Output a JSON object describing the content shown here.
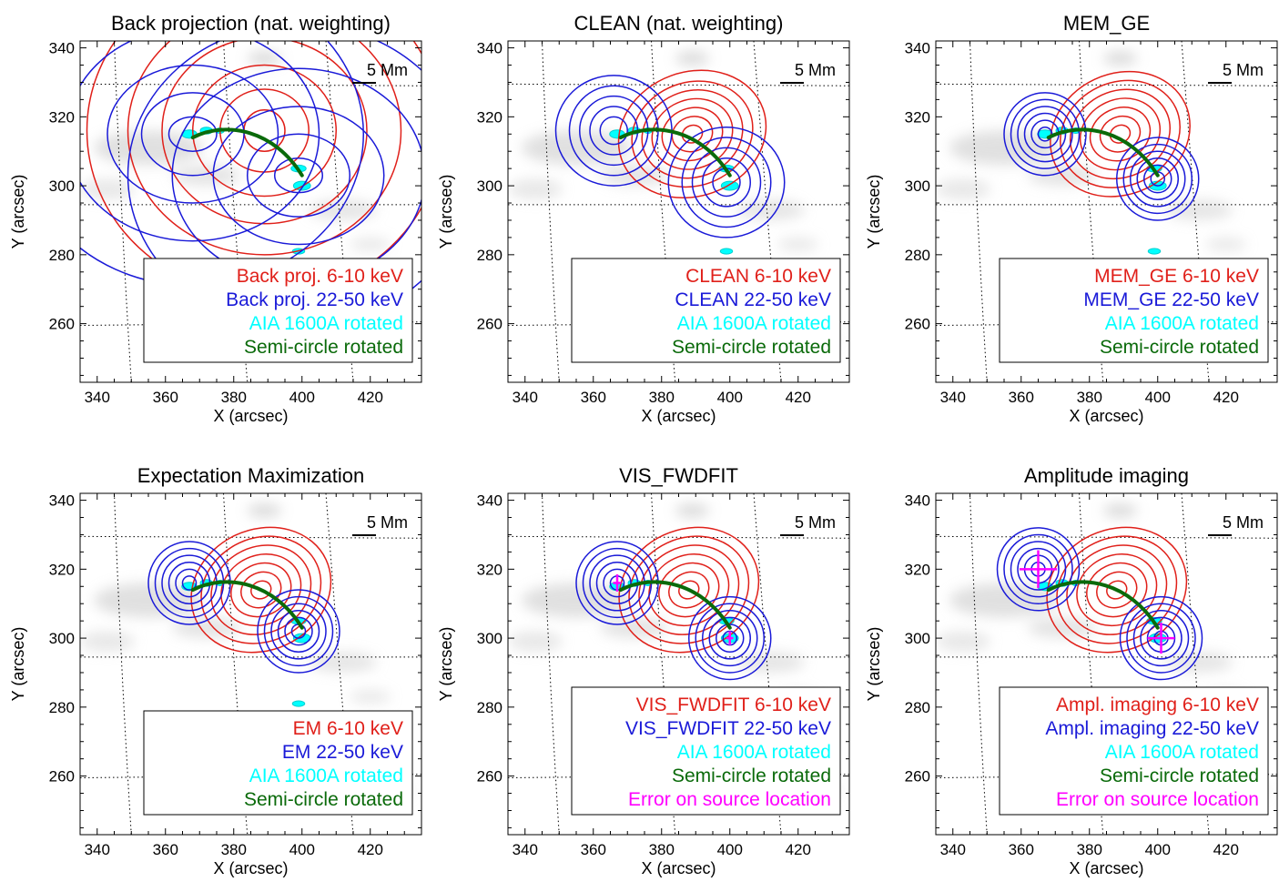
{
  "chart_data": [
    {
      "type": "contour",
      "title": "Back projection (nat. weighting)",
      "xlabel": "X (arcsec)",
      "ylabel": "Y (arcsec)",
      "xlim": [
        335,
        435
      ],
      "ylim": [
        243,
        342
      ],
      "xticks": [
        "340",
        "360",
        "380",
        "400",
        "420"
      ],
      "yticks": [
        "260",
        "280",
        "300",
        "320",
        "340"
      ],
      "scale_bar": "5 Mm",
      "legend": [
        "Back proj. 6-10 keV",
        "Back proj. 22-50 keV",
        "AIA 1600A rotated",
        "Semi-circle rotated"
      ],
      "legend_colors": [
        "#e0201a",
        "#1a1ad8",
        "#00ffff",
        "#0a6a0a"
      ],
      "series": [
        {
          "name": "Back proj. 6-10 keV",
          "color": "#e0201a",
          "centers": [
            [
              389,
              316
            ]
          ],
          "radii": [
            [
              6,
              6
            ],
            [
              13,
              12
            ],
            [
              21,
              19
            ],
            [
              30,
              27
            ],
            [
              40,
              36
            ],
            [
              52,
              48
            ]
          ],
          "angle": 0
        },
        {
          "name": "Back proj. 22-50 keV",
          "color": "#1a1ad8",
          "centers": [
            [
              368,
              315
            ],
            [
              399,
              303
            ]
          ],
          "radii": [
            [
              7,
              5
            ],
            [
              15,
              12
            ],
            [
              25,
              20
            ],
            [
              37,
              31
            ],
            [
              50,
              44
            ]
          ],
          "angle": 0
        }
      ],
      "errors": []
    },
    {
      "type": "contour",
      "title": "CLEAN (nat. weighting)",
      "xlabel": "X (arcsec)",
      "ylabel": "Y (arcsec)",
      "xlim": [
        335,
        435
      ],
      "ylim": [
        243,
        342
      ],
      "xticks": [
        "340",
        "360",
        "380",
        "400",
        "420"
      ],
      "yticks": [
        "260",
        "280",
        "300",
        "320",
        "340"
      ],
      "scale_bar": "5 Mm",
      "legend": [
        "CLEAN 6-10 keV",
        "CLEAN 22-50 keV",
        "AIA 1600A rotated",
        "Semi-circle rotated"
      ],
      "legend_colors": [
        "#e0201a",
        "#1a1ad8",
        "#00ffff",
        "#0a6a0a"
      ],
      "series": [
        {
          "name": "CLEAN 6-10 keV",
          "color": "#e0201a",
          "centers": [
            [
              389,
              315
            ]
          ],
          "radii": [
            [
              3,
              2.5
            ],
            [
              6,
              5
            ],
            [
              9,
              7.5
            ],
            [
              12,
              10
            ],
            [
              15,
              12.5
            ],
            [
              18,
              15
            ],
            [
              22,
              18
            ]
          ],
          "angle": -20
        },
        {
          "name": "CLEAN 22-50 keV",
          "color": "#1a1ad8",
          "centers": [
            [
              366,
              316
            ],
            [
              399,
              301
            ]
          ],
          "radii": [
            [
              4,
              4
            ],
            [
              7,
              7
            ],
            [
              10,
              10
            ],
            [
              13,
              13
            ],
            [
              17,
              16
            ]
          ],
          "angle": 0
        }
      ],
      "errors": []
    },
    {
      "type": "contour",
      "title": "MEM_GE",
      "xlabel": "X (arcsec)",
      "ylabel": "Y (arcsec)",
      "xlim": [
        335,
        435
      ],
      "ylim": [
        243,
        342
      ],
      "xticks": [
        "340",
        "360",
        "380",
        "400",
        "420"
      ],
      "yticks": [
        "260",
        "280",
        "300",
        "320",
        "340"
      ],
      "scale_bar": "5 Mm",
      "legend": [
        "MEM_GE 6-10 keV",
        "MEM_GE 22-50 keV",
        "AIA 1600A rotated",
        "Semi-circle rotated"
      ],
      "legend_colors": [
        "#e0201a",
        "#1a1ad8",
        "#00ffff",
        "#0a6a0a"
      ],
      "series": [
        {
          "name": "MEM_GE 6-10 keV",
          "color": "#e0201a",
          "centers": [
            [
              389,
              315
            ]
          ],
          "radii": [
            [
              3,
              2.5
            ],
            [
              6,
              5
            ],
            [
              9,
              7.5
            ],
            [
              12,
              10
            ],
            [
              15,
              12.5
            ],
            [
              18,
              15
            ],
            [
              21,
              17.5
            ]
          ],
          "angle": -25
        },
        {
          "name": "MEM_GE 22-50 keV",
          "color": "#1a1ad8",
          "centers": [
            [
              367,
              315
            ],
            [
              400,
              302
            ]
          ],
          "radii": [
            [
              2,
              2
            ],
            [
              4,
              4
            ],
            [
              6,
              6
            ],
            [
              8,
              8
            ],
            [
              10,
              10
            ],
            [
              12,
              12
            ]
          ],
          "angle": 0
        }
      ],
      "errors": []
    },
    {
      "type": "contour",
      "title": "Expectation Maximization",
      "xlabel": "X (arcsec)",
      "ylabel": "Y (arcsec)",
      "xlim": [
        335,
        435
      ],
      "ylim": [
        243,
        342
      ],
      "xticks": [
        "340",
        "360",
        "380",
        "400",
        "420"
      ],
      "yticks": [
        "260",
        "280",
        "300",
        "320",
        "340"
      ],
      "scale_bar": "5 Mm",
      "legend": [
        "EM 6-10 keV",
        "EM 22-50 keV",
        "AIA 1600A rotated",
        "Semi-circle rotated"
      ],
      "legend_colors": [
        "#e0201a",
        "#1a1ad8",
        "#00ffff",
        "#0a6a0a"
      ],
      "series": [
        {
          "name": "EM 6-10 keV",
          "color": "#e0201a",
          "centers": [
            [
              388,
              314
            ]
          ],
          "radii": [
            [
              3,
              2.5
            ],
            [
              6,
              5
            ],
            [
              9,
              7.5
            ],
            [
              12,
              10
            ],
            [
              15,
              12.5
            ],
            [
              18,
              15
            ],
            [
              21,
              17.5
            ]
          ],
          "angle": -25
        },
        {
          "name": "EM 22-50 keV",
          "color": "#1a1ad8",
          "centers": [
            [
              367,
              316
            ],
            [
              399,
              302
            ]
          ],
          "radii": [
            [
              2,
              2
            ],
            [
              4,
              4
            ],
            [
              6,
              6
            ],
            [
              8,
              8
            ],
            [
              10,
              10
            ],
            [
              12,
              12
            ]
          ],
          "angle": 0
        }
      ],
      "errors": []
    },
    {
      "type": "contour",
      "title": "VIS_FWDFIT",
      "xlabel": "X (arcsec)",
      "ylabel": "Y (arcsec)",
      "xlim": [
        335,
        435
      ],
      "ylim": [
        243,
        342
      ],
      "xticks": [
        "340",
        "360",
        "380",
        "400",
        "420"
      ],
      "yticks": [
        "260",
        "280",
        "300",
        "320",
        "340"
      ],
      "scale_bar": "5 Mm",
      "legend": [
        "VIS_FWDFIT 6-10 keV",
        "VIS_FWDFIT 22-50 keV",
        "AIA 1600A rotated",
        "Semi-circle rotated",
        "Error on source location"
      ],
      "legend_colors": [
        "#e0201a",
        "#1a1ad8",
        "#00ffff",
        "#0a6a0a",
        "#ff00ff"
      ],
      "series": [
        {
          "name": "VIS_FWDFIT 6-10 keV",
          "color": "#e0201a",
          "centers": [
            [
              388,
              314
            ]
          ],
          "radii": [
            [
              3,
              2.5
            ],
            [
              6,
              5
            ],
            [
              9,
              7.5
            ],
            [
              12,
              10
            ],
            [
              15,
              12.5
            ],
            [
              18,
              15
            ],
            [
              21,
              17.5
            ]
          ],
          "angle": -25
        },
        {
          "name": "VIS_FWDFIT 22-50 keV",
          "color": "#1a1ad8",
          "centers": [
            [
              367,
              316
            ],
            [
              400,
              300
            ]
          ],
          "radii": [
            [
              2,
              2
            ],
            [
              4,
              4
            ],
            [
              6,
              6
            ],
            [
              8,
              8
            ],
            [
              10,
              10
            ],
            [
              12,
              12
            ]
          ],
          "angle": 0
        }
      ],
      "errors": [
        {
          "x": 367,
          "y": 316,
          "dx": 1.2,
          "dy": 2.5,
          "color": "#ff00ff"
        },
        {
          "x": 400,
          "y": 300,
          "dx": 1,
          "dy": 2,
          "color": "#ff00ff"
        }
      ]
    },
    {
      "type": "contour",
      "title": "Amplitude imaging",
      "xlabel": "X (arcsec)",
      "ylabel": "Y (arcsec)",
      "xlim": [
        335,
        435
      ],
      "ylim": [
        243,
        342
      ],
      "xticks": [
        "340",
        "360",
        "380",
        "400",
        "420"
      ],
      "yticks": [
        "260",
        "280",
        "300",
        "320",
        "340"
      ],
      "scale_bar": "5 Mm",
      "legend": [
        "Ampl. imaging 6-10 keV",
        "Ampl. imaging 22-50 keV",
        "AIA 1600A rotated",
        "Semi-circle rotated",
        "Error on source location"
      ],
      "legend_colors": [
        "#e0201a",
        "#1a1ad8",
        "#00ffff",
        "#0a6a0a",
        "#ff00ff"
      ],
      "series": [
        {
          "name": "Ampl. imaging 6-10 keV",
          "color": "#e0201a",
          "centers": [
            [
              388,
              314
            ]
          ],
          "radii": [
            [
              3,
              2.5
            ],
            [
              6,
              5
            ],
            [
              9,
              7.5
            ],
            [
              12,
              10
            ],
            [
              15,
              12.5
            ],
            [
              18,
              15
            ],
            [
              21,
              17.5
            ]
          ],
          "angle": -25
        },
        {
          "name": "Ampl. imaging 22-50 keV",
          "color": "#1a1ad8",
          "centers": [
            [
              365,
              320
            ],
            [
              401,
              300
            ]
          ],
          "radii": [
            [
              2,
              2
            ],
            [
              4,
              4
            ],
            [
              6,
              6
            ],
            [
              8,
              8
            ],
            [
              10,
              10
            ],
            [
              12,
              12
            ]
          ],
          "angle": 0
        }
      ],
      "errors": [
        {
          "x": 365,
          "y": 320,
          "dx": 5.5,
          "dy": 5.5,
          "color": "#ff00ff"
        },
        {
          "x": 401,
          "y": 300,
          "dx": 4,
          "dy": 4.5,
          "color": "#ff00ff"
        }
      ]
    }
  ]
}
